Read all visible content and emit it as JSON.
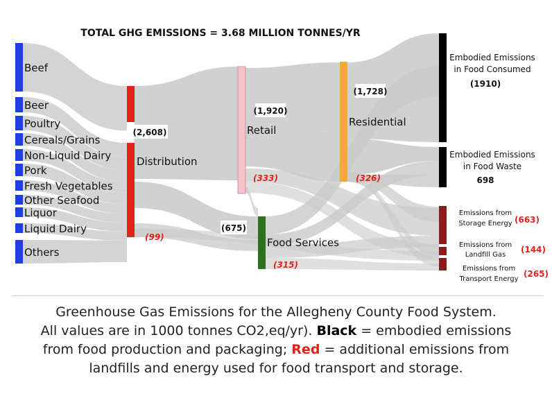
{
  "title": "TOTAL GHG EMISSIONS = 3.68 MILLION TONNES/YR",
  "colors": {
    "flow": "#c9c9c9",
    "food_node": "#1f3ee0",
    "distribution": "#e3211c",
    "retail": "#f4c2cb",
    "retail_border": "#d890a0",
    "residential": "#f6a93b",
    "food_services": "#2f6f1f",
    "embodied": "#000000",
    "energy": "#8b1c1c",
    "red_value": "#e3211c"
  },
  "sources": [
    "Beef",
    "Beer",
    "Poultry",
    "Cereals/Grains",
    "Non-Liquid Dairy",
    "Pork",
    "Fresh Vegetables",
    "Other Seafood",
    "Liquor",
    "Liquid Dairy",
    "Others"
  ],
  "stages": {
    "distribution": {
      "label": "Distribution",
      "value": "(2,608)",
      "added": "(99)"
    },
    "retail": {
      "label": "Retail",
      "value": "(1,920)",
      "added": "(333)"
    },
    "food_services": {
      "label": "Food Services",
      "value": "(675)",
      "added": "(315)"
    },
    "residential": {
      "label": "Residential",
      "value": "(1,728)",
      "added": "(326)"
    }
  },
  "outcomes": {
    "consumed": {
      "label_1": "Embodied Emissions",
      "label_2": "in Food Consumed",
      "value": "(1910)"
    },
    "waste": {
      "label_1": "Embodied Emissions",
      "label_2": "in Food Waste",
      "value": "698"
    },
    "storage": {
      "label_1": "Emissions from",
      "label_2": "Storage Energy",
      "value": "(663)"
    },
    "landfill": {
      "label_1": "Emissions from",
      "label_2": "Landfill Gas",
      "value": "(144)"
    },
    "transport": {
      "label_1": "Emissions from",
      "label_2": "Transport Energy",
      "value": "(265)"
    }
  },
  "caption": {
    "line1": "Greenhouse Gas Emissions for the Allegheny County Food System.",
    "line2_pre": "All values are in 1000 tonnes CO2,eq/yr). ",
    "black_word": "Black",
    "line2_post": " =  embodied emissions",
    "line3_pre": "from food production and packaging; ",
    "red_word": "Red",
    "line3_post": " = additional emissions from",
    "line4": "landfills and energy used for food transport and storage."
  }
}
